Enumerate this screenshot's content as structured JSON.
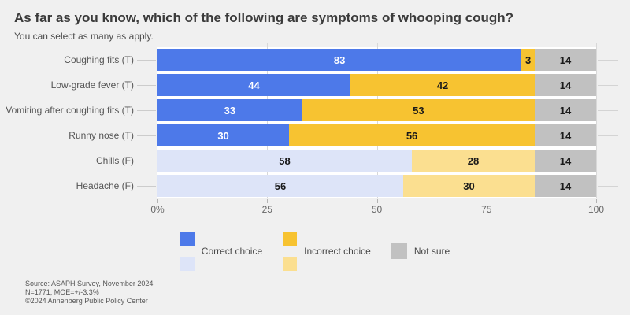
{
  "header": {
    "title": "As far as you know, which of the following are symptoms of whooping cough?",
    "subtitle": "You can select as many as apply."
  },
  "colors": {
    "correct": "#4d79e9",
    "correct_muted": "#dde4f8",
    "incorrect": "#f7c331",
    "incorrect_muted": "#fbdf90",
    "not_sure": "#c1c1c1",
    "background": "#f0f0f0",
    "value_on_dark": "#ffffff",
    "value_on_light": "#1a1a1a",
    "gridline": "#d8d8d8"
  },
  "chart_data": {
    "type": "bar",
    "stacked": true,
    "orientation": "horizontal",
    "categories": [
      "Coughing fits (T)",
      "Low-grade fever (T)",
      "Vomiting after coughing fits (T)",
      "Runny nose (T)",
      "Chills (F)",
      "Headache (F)"
    ],
    "series": [
      {
        "name": "Correct choice",
        "values": [
          83,
          44,
          33,
          30,
          58,
          56
        ]
      },
      {
        "name": "Incorrect choice",
        "values": [
          3,
          42,
          53,
          56,
          28,
          30
        ]
      },
      {
        "name": "Not sure",
        "values": [
          14,
          14,
          14,
          14,
          14,
          14
        ]
      }
    ],
    "muted_categories": [
      "Chills (F)",
      "Headache (F)"
    ],
    "xlim": [
      0,
      100
    ],
    "x_ticks": [
      {
        "value": 0,
        "label": "0%"
      },
      {
        "value": 25,
        "label": "25"
      },
      {
        "value": 50,
        "label": "50"
      },
      {
        "value": 75,
        "label": "75"
      },
      {
        "value": 100,
        "label": "100"
      }
    ],
    "grid": true,
    "legend_position": "bottom",
    "legend": [
      {
        "label": "Correct choice",
        "swatches": [
          "#4d79e9",
          "#dde4f8"
        ]
      },
      {
        "label": "Incorrect choice",
        "swatches": [
          "#f7c331",
          "#fbdf90"
        ]
      },
      {
        "label": "Not sure",
        "swatches": [
          "#c1c1c1"
        ]
      }
    ]
  },
  "footer": {
    "lines": [
      "Source: ASAPH Survey, November 2024",
      "N=1771, MOE=+/-3.3%",
      "©2024 Annenberg Public Policy Center"
    ]
  }
}
